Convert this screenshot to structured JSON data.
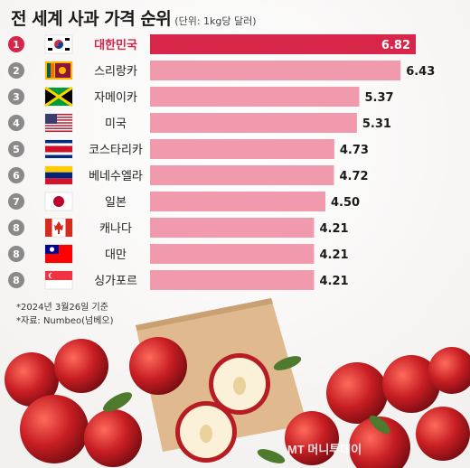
{
  "chart_data": {
    "type": "bar",
    "orientation": "horizontal",
    "title": "전 세계 사과 가격 순위",
    "unit_label": "(단위: 1kg당 달러)",
    "categories": [
      "대한민국",
      "스리랑카",
      "자메이카",
      "미국",
      "코스타리카",
      "베네수엘라",
      "일본",
      "캐나다",
      "대만",
      "싱가포르"
    ],
    "ranks": [
      "1",
      "2",
      "3",
      "4",
      "5",
      "6",
      "7",
      "8",
      "8",
      "8"
    ],
    "values": [
      6.82,
      6.43,
      5.37,
      5.31,
      4.73,
      4.72,
      4.5,
      4.21,
      4.21,
      4.21
    ],
    "value_labels": [
      "6.82",
      "6.43",
      "5.37",
      "5.31",
      "4.73",
      "4.72",
      "4.50",
      "4.21",
      "4.21",
      "4.21"
    ],
    "flag_icons": [
      "flag-korea-icon",
      "flag-sri-lanka-icon",
      "flag-jamaica-icon",
      "flag-usa-icon",
      "flag-costa-rica-icon",
      "flag-venezuela-icon",
      "flag-japan-icon",
      "flag-canada-icon",
      "flag-taiwan-icon",
      "flag-singapore-icon"
    ],
    "highlight_index": 0,
    "xlim": [
      0,
      6.82
    ],
    "grid": false,
    "colors": {
      "highlight": "#d7264a",
      "bar": "#f19aad",
      "rank_highlight": "#d7264a",
      "rank": "#8a8a8a"
    }
  },
  "notes": [
    "*2024년 3월26일 기준",
    "*자료: Numbeo(넘베오)"
  ],
  "watermark": "MT 머니투데이"
}
